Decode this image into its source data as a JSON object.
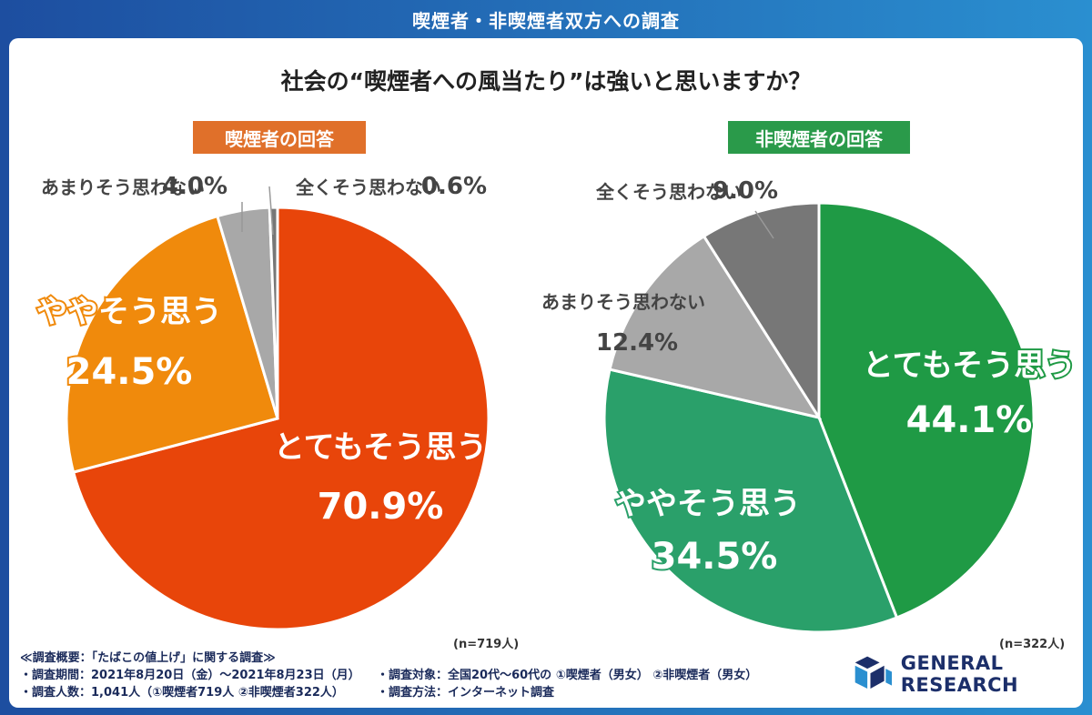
{
  "header": {
    "title": "喫煙者・非喫煙者双方への調査"
  },
  "question": "社会の“喫煙者への風当たり”は強いと思いますか？",
  "chart_data": [
    {
      "type": "pie",
      "title": "喫煙者の回答",
      "n_label": "(n=719人)",
      "colors": [
        "#e8450a",
        "#f08a0c",
        "#a8a8a8",
        "#777777"
      ],
      "slices": [
        {
          "label": "とてもそう思う",
          "value": 70.9,
          "display": "70.9%"
        },
        {
          "label": "ややそう思う",
          "value": 24.5,
          "display": "24.5%"
        },
        {
          "label": "あまりそう思わない",
          "value": 4.0,
          "display": "4.0%"
        },
        {
          "label": "全くそう思わない",
          "value": 0.6,
          "display": "0.6%"
        }
      ]
    },
    {
      "type": "pie",
      "title": "非喫煙者の回答",
      "n_label": "(n=322人)",
      "colors": [
        "#1f9a45",
        "#2aa06a",
        "#a8a8a8",
        "#777777"
      ],
      "slices": [
        {
          "label": "とてもそう思う",
          "value": 44.1,
          "display": "44.1%"
        },
        {
          "label": "ややそう思う",
          "value": 34.5,
          "display": "34.5%"
        },
        {
          "label": "あまりそう思わない",
          "value": 12.4,
          "display": "12.4%"
        },
        {
          "label": "全くそう思わない",
          "value": 9.0,
          "display": "9.0%"
        }
      ]
    }
  ],
  "footer": {
    "title": "≪調査概要：「たばこの値上げ」に関する調査≫",
    "period": "・調査期間：2021年8月20日（金）〜2021年8月23日（月）",
    "target": "・調査対象：全国20代〜60代の ①喫煙者（男女） ②非喫煙者（男女）",
    "count": "・調査人数：1,041人（①喫煙者719人 ②非喫煙者322人）",
    "method": "・調査方法：インターネット調査"
  },
  "logo": {
    "text": "GENERAL RESEARCH",
    "colors": [
      "#1c2f6a",
      "#2a8fd0"
    ]
  }
}
